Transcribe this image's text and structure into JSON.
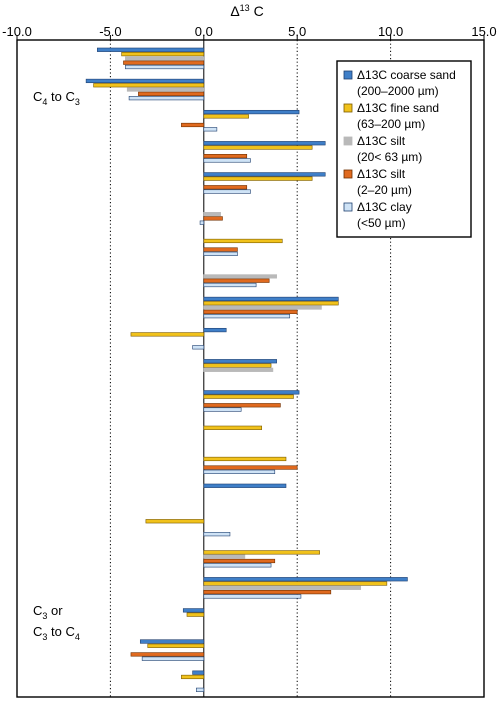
{
  "chart_data": {
    "type": "bar",
    "orientation": "horizontal",
    "x_axis": {
      "label": "Δ",
      "label_superscript": "13",
      "label_suffix": "C",
      "lim": [
        -10.0,
        15.0
      ],
      "ticks": [
        -10.0,
        -5.0,
        0.0,
        5.0,
        10.0,
        15.0
      ],
      "tick_labels": [
        "-10.0",
        "-5.0",
        "0.0",
        "5.0",
        "10.0",
        "15.0"
      ],
      "position": "top"
    },
    "gridlines_dotted_at": [
      -5.0,
      5.0,
      10.0
    ],
    "zero_line": 0.0,
    "series": [
      {
        "name": "Δ13C coarse sand",
        "name_line2": "(200–2000 µm)",
        "color": "#3f7fc8",
        "stroke": "#1f3f6f"
      },
      {
        "name": "Δ13C fine sand",
        "name_line2": "(63–200 µm)",
        "color": "#f1c21b",
        "stroke": "#7a5a00"
      },
      {
        "name": "Δ13C silt",
        "name_line2": "(20< 63 µm)",
        "color": "#b9b9b9",
        "stroke": "#b9b9b9"
      },
      {
        "name": "Δ13C silt",
        "name_line2": "(2–20 µm)",
        "color": "#e06a1f",
        "stroke": "#6f2f00"
      },
      {
        "name": "Δ13C clay",
        "name_line2": "(<50 µm)",
        "color": "#cfe3f6",
        "stroke": "#1f3f6f"
      }
    ],
    "groups": [
      [
        -5.7,
        -4.4,
        -4.2,
        -4.3,
        -4.2
      ],
      [
        -6.3,
        -5.9,
        -4.1,
        -3.5,
        -4.0
      ],
      [
        5.1,
        2.4,
        0.0,
        -1.2,
        0.7
      ],
      [
        6.5,
        5.8,
        0.0,
        2.3,
        2.5
      ],
      [
        6.5,
        5.8,
        0.0,
        2.3,
        2.5
      ],
      [
        0.0,
        0.0,
        0.9,
        1.0,
        -0.2
      ],
      [
        0.0,
        4.2,
        0.0,
        1.8,
        1.8
      ],
      [
        0.0,
        0.0,
        3.9,
        3.5,
        2.8
      ],
      [
        7.2,
        7.2,
        6.3,
        5.0,
        4.6
      ],
      [
        1.2,
        -3.9,
        0.0,
        0.0,
        -0.6
      ],
      [
        3.9,
        3.6,
        3.7,
        0.0,
        0.0
      ],
      [
        5.1,
        4.8,
        0.0,
        4.1,
        2.0
      ],
      [
        0.0,
        3.1,
        0.0,
        0.0,
        0.0
      ],
      [
        0.0,
        4.4,
        0.0,
        5.0,
        3.8
      ],
      [
        4.4,
        0.0,
        0.0,
        0.0,
        0.0
      ],
      [
        0.0,
        -3.1,
        0.0,
        0.0,
        1.4
      ],
      [
        0.0,
        6.2,
        2.2,
        3.8,
        3.6
      ],
      [
        10.9,
        9.8,
        8.4,
        6.8,
        5.2
      ],
      [
        -1.1,
        -0.9,
        0.0,
        0.0,
        0.0
      ],
      [
        -3.4,
        -3.0,
        0.0,
        -3.9,
        -3.3
      ],
      [
        -0.6,
        -1.2,
        0.0,
        0.0,
        -0.4
      ]
    ],
    "annotations": [
      {
        "text_main": "C",
        "sub": "4",
        "text_mid": " to C",
        "sub2": "3",
        "near_group": 2
      },
      {
        "text_main": "C",
        "sub": "3",
        "text_mid": " or",
        "sub2": "",
        "near_group": 17
      },
      {
        "text_main": "C",
        "sub": "3",
        "text_mid": " to C",
        "sub2": "4",
        "near_group": 18
      }
    ],
    "legend_position": "top-right"
  }
}
